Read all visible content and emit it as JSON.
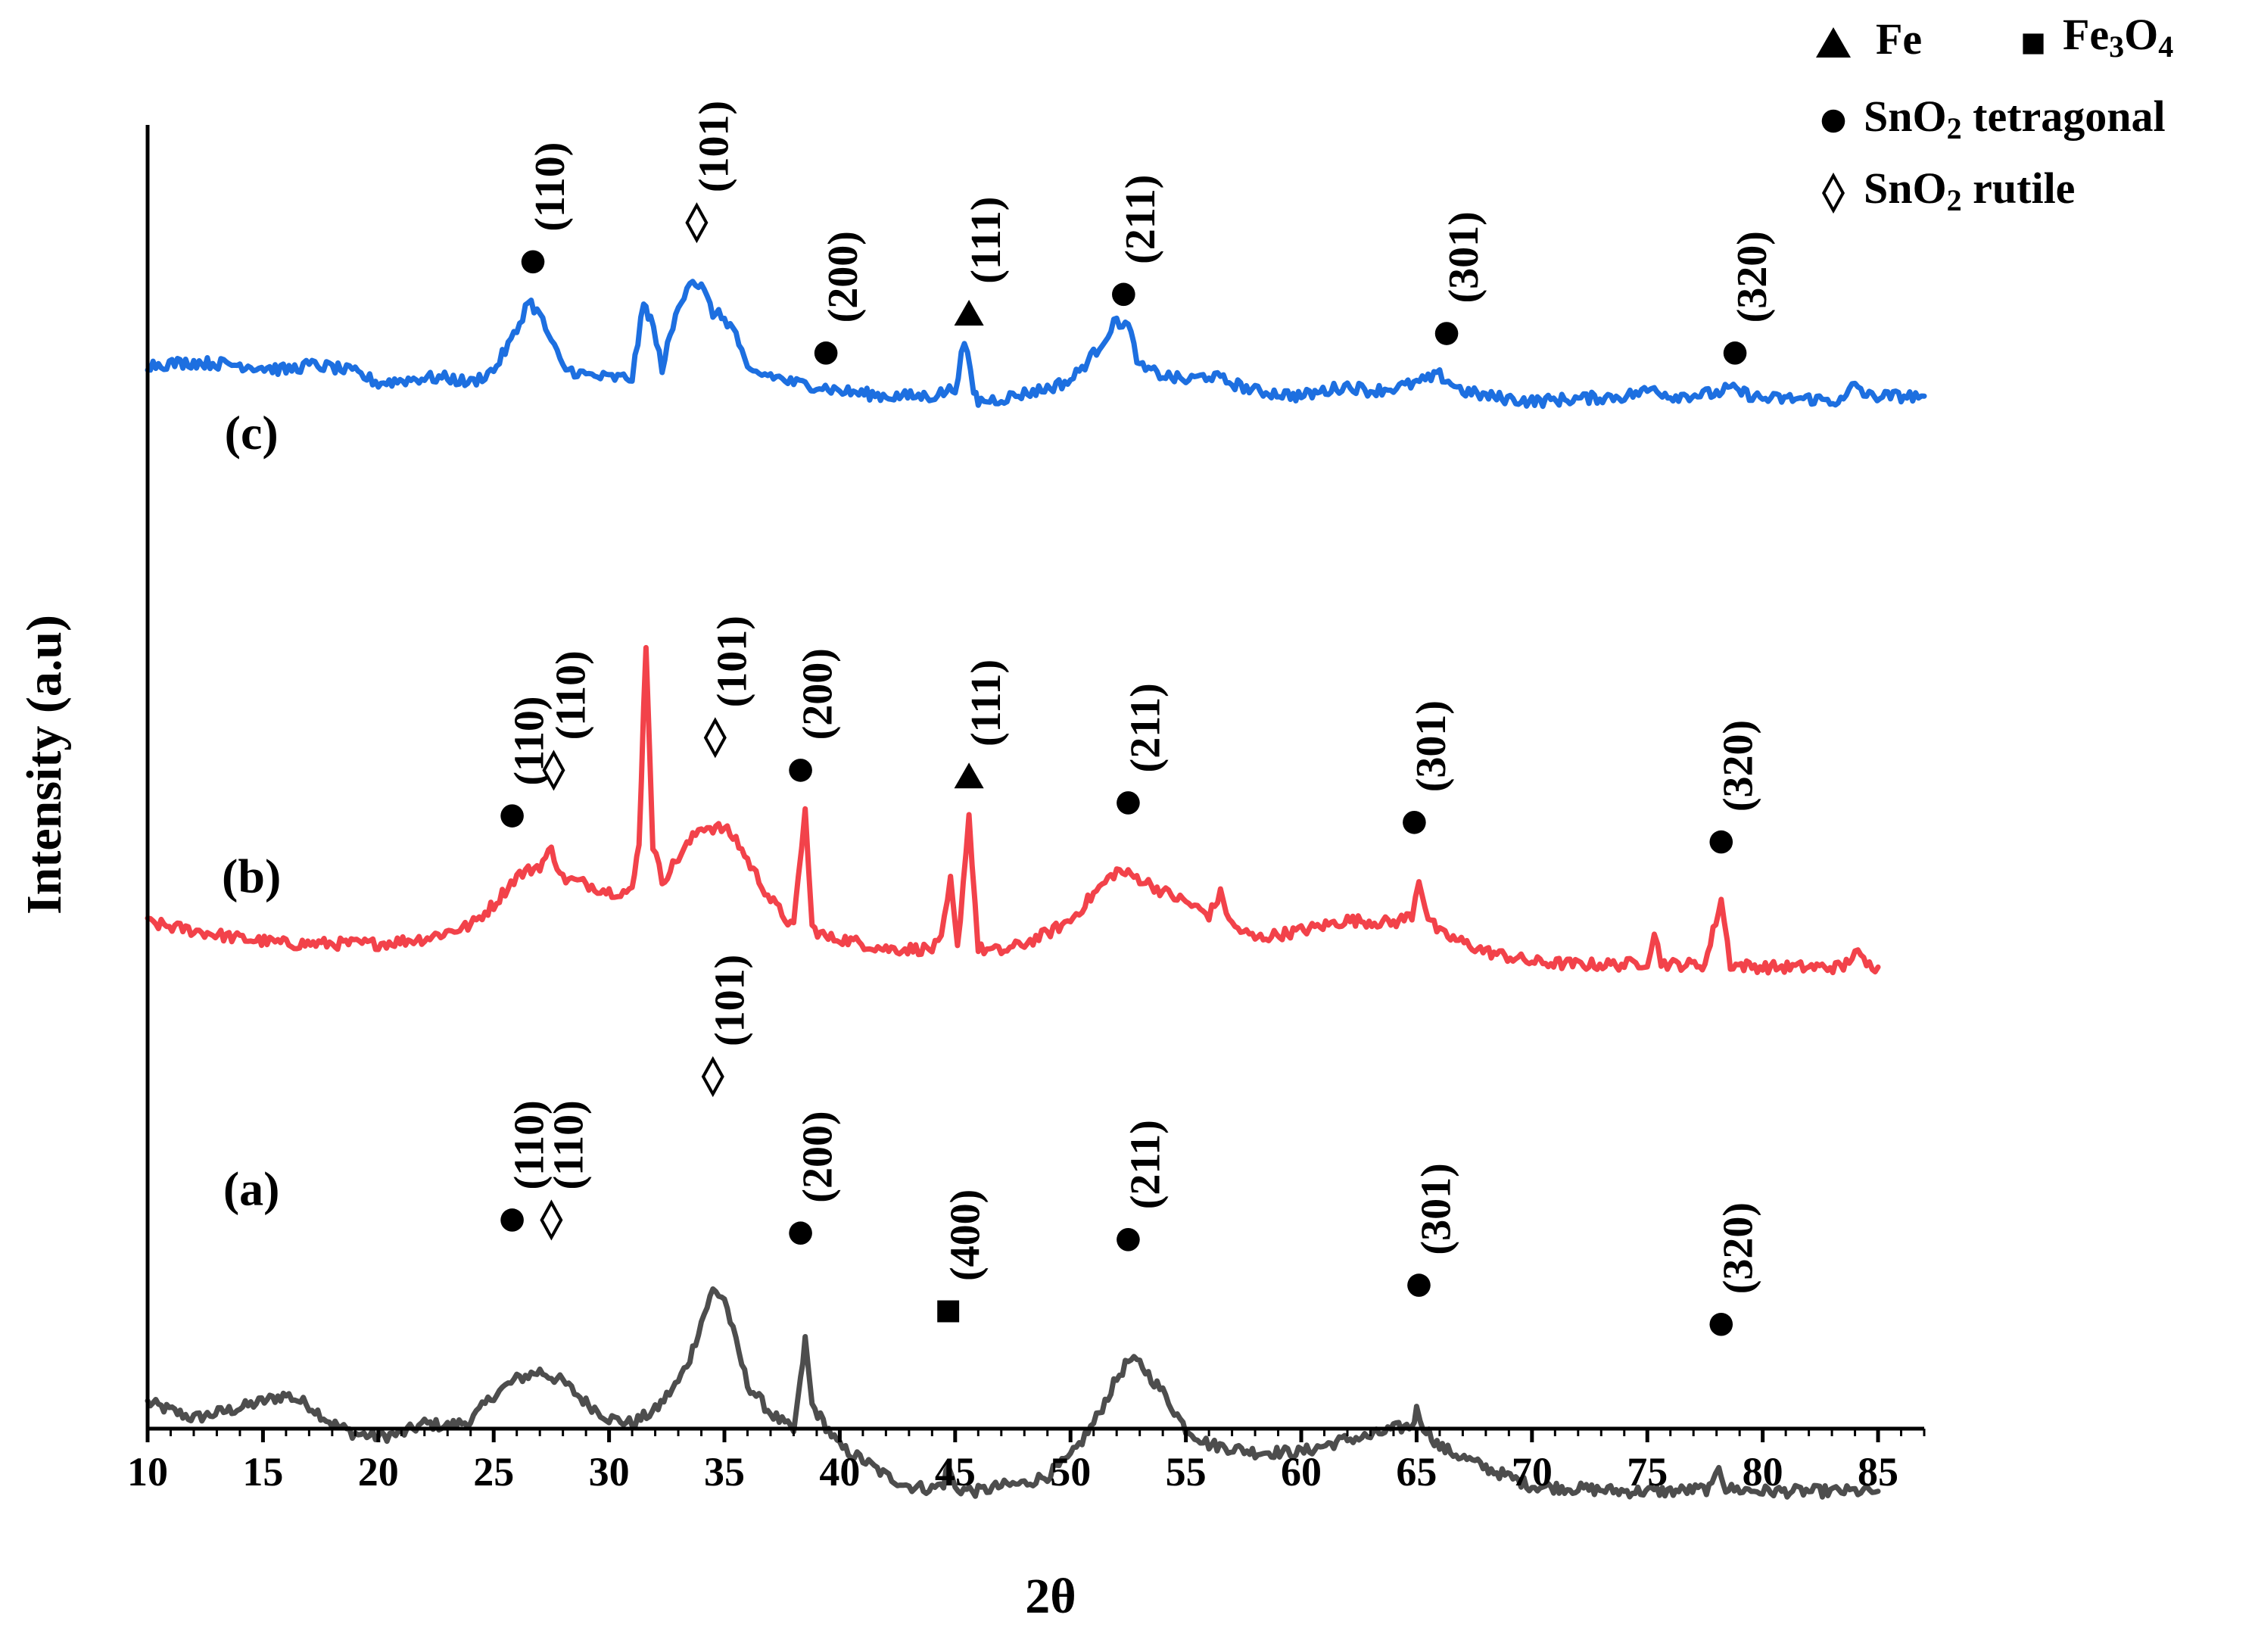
{
  "chart_data": {
    "type": "line",
    "title": "",
    "xlabel": "2θ",
    "ylabel": "Intensity (a.u)",
    "xlim": [
      10,
      87
    ],
    "xticks": [
      10,
      15,
      20,
      25,
      30,
      35,
      40,
      45,
      50,
      55,
      60,
      65,
      70,
      75,
      80,
      85
    ],
    "ylim": [
      0,
      100
    ],
    "grid": false,
    "colors": {
      "a": "#4d4d4d",
      "b": "#f2424a",
      "c": "#1d6fe0",
      "axis": "#000000"
    },
    "legend": {
      "position": "top-right",
      "items": [
        {
          "symbol": "triangle",
          "name": "Fe"
        },
        {
          "symbol": "square",
          "name": "Fe",
          "sub": "3",
          "name2": "O",
          "sub2": "4"
        },
        {
          "symbol": "circle",
          "name": "SnO",
          "sub": "2",
          "rest": " tetragonal"
        },
        {
          "symbol": "diamond",
          "name": "SnO",
          "sub": "2",
          "rest": " rutile"
        }
      ]
    },
    "series": [
      {
        "id": "a",
        "name": "(a)",
        "label_x": 14.5,
        "label_y": 18,
        "x": [
          10,
          12,
          14,
          16,
          17,
          18,
          19,
          20,
          21,
          22,
          23,
          24,
          25,
          26,
          27,
          27.5,
          28,
          29,
          30,
          31,
          32,
          33,
          33.5,
          34,
          34.5,
          35,
          35.5,
          36,
          37,
          38,
          38.3,
          38.5,
          38.8,
          40,
          41,
          42,
          43,
          44,
          44.5,
          44.7,
          45,
          46,
          47,
          48,
          49,
          50,
          51,
          52,
          52.5,
          53,
          54,
          55,
          56,
          58,
          60,
          62,
          63,
          64,
          64.8,
          65,
          65.3,
          66,
          68,
          70,
          72,
          74,
          76,
          77.8,
          78.1,
          78.4,
          80,
          82,
          84,
          85
        ],
        "y": [
          2.0,
          0.8,
          1.6,
          2.6,
          1.8,
          0.4,
          -0.4,
          -0.6,
          -0.4,
          0.4,
          0.2,
          0.6,
          2.6,
          3.8,
          4.4,
          4.0,
          3.6,
          2.0,
          0.8,
          0.4,
          1.4,
          3.6,
          5.4,
          8.2,
          10.6,
          10.0,
          6.6,
          3.4,
          1.2,
          -0.2,
          3.6,
          6.8,
          1.8,
          -1.4,
          -2.4,
          -3.6,
          -4.4,
          -4.6,
          -4.2,
          -2.8,
          -4.6,
          -4.8,
          -4.4,
          -4.2,
          -3.6,
          -2.2,
          0.4,
          3.8,
          5.2,
          5.0,
          2.8,
          0.0,
          -1.2,
          -1.8,
          -1.8,
          -0.8,
          -0.6,
          0.0,
          0.2,
          1.4,
          0.2,
          -1.4,
          -3.0,
          -4.4,
          -4.6,
          -4.8,
          -4.8,
          -4.6,
          -2.8,
          -4.6,
          -4.8,
          -4.8,
          -4.8,
          -4.8
        ]
      },
      {
        "id": "b",
        "name": "(b)",
        "label_x": 14.5,
        "label_y": 42,
        "x": [
          10,
          12,
          14,
          16,
          18,
          20,
          22,
          24,
          25,
          26,
          27,
          27.5,
          28,
          29,
          30,
          31,
          31.3,
          31.6,
          31.9,
          32.3,
          33,
          34,
          35,
          35.5,
          36,
          37,
          38,
          38.2,
          38.5,
          38.8,
          39.5,
          40,
          42,
          44,
          44.4,
          44.8,
          45.1,
          45.6,
          46,
          47,
          48,
          49,
          50,
          51,
          52,
          53,
          54,
          55,
          56,
          56.5,
          57,
          58,
          60,
          62,
          64,
          64.8,
          65.1,
          65.5,
          66,
          68,
          70,
          72,
          74,
          75,
          75.3,
          75.6,
          76,
          77.5,
          78.2,
          78.6,
          80,
          82,
          83.5,
          84,
          84.5,
          85
        ],
        "y": [
          38.8,
          38.2,
          37.6,
          37.2,
          37.2,
          37.2,
          37.6,
          38.6,
          40.2,
          42.4,
          43.2,
          44.4,
          42.2,
          41.8,
          41.2,
          41.2,
          45.0,
          60.2,
          44.8,
          42.0,
          43.8,
          46.2,
          46.0,
          45.2,
          43.6,
          40.6,
          38.4,
          42.2,
          47.4,
          38.4,
          37.6,
          37.6,
          36.8,
          36.8,
          37.4,
          42.0,
          36.8,
          47.0,
          36.8,
          36.6,
          37.2,
          38.0,
          39.0,
          41.0,
          42.8,
          42.2,
          41.2,
          40.4,
          39.4,
          41.0,
          38.6,
          37.6,
          38.2,
          39.0,
          38.8,
          39.4,
          42.2,
          39.2,
          38.0,
          36.6,
          35.8,
          35.6,
          35.6,
          35.8,
          38.0,
          35.8,
          35.6,
          35.6,
          40.6,
          35.6,
          35.4,
          35.4,
          35.4,
          36.6,
          35.6,
          35.4
        ]
      },
      {
        "id": "c",
        "name": "(c)",
        "label_x": 14.5,
        "label_y": 76,
        "x": [
          10,
          12,
          14,
          16,
          17,
          18,
          19,
          19.5,
          20,
          22,
          23,
          24,
          25,
          26,
          26.5,
          27,
          28,
          29,
          30,
          31,
          31.5,
          31.8,
          32.3,
          33,
          33.5,
          34,
          34.5,
          35,
          35.5,
          36,
          37,
          38,
          39,
          40,
          42,
          44,
          45,
          45.4,
          45.8,
          46,
          47,
          48,
          49,
          50,
          51,
          52,
          52.5,
          53,
          54,
          55,
          56,
          57,
          58,
          60,
          62,
          63,
          64,
          65,
          66,
          67,
          68,
          70,
          72,
          74,
          75,
          75.3,
          76,
          78,
          78.5,
          80,
          82,
          83.5,
          84,
          84.5,
          86,
          87
        ],
        "y": [
          81.6,
          81.8,
          81.6,
          81.2,
          81.6,
          81.4,
          81.0,
          80.6,
          80.2,
          80.6,
          80.6,
          80.2,
          81.2,
          84.2,
          86.6,
          85.4,
          81.4,
          80.8,
          80.6,
          80.6,
          86.2,
          85.2,
          81.4,
          86.0,
          88.2,
          87.6,
          85.6,
          85.2,
          84.0,
          81.0,
          80.8,
          80.2,
          80.0,
          79.6,
          79.2,
          79.2,
          79.8,
          83.4,
          79.6,
          78.8,
          79.0,
          79.4,
          79.8,
          80.4,
          82.4,
          85.0,
          84.6,
          81.4,
          80.8,
          80.4,
          80.8,
          80.2,
          79.6,
          79.2,
          80.0,
          79.6,
          79.8,
          80.2,
          80.8,
          79.6,
          79.2,
          78.8,
          79.0,
          79.2,
          79.6,
          79.8,
          79.2,
          79.4,
          79.8,
          79.0,
          79.0,
          78.8,
          80.2,
          79.2,
          79.2,
          79.2
        ]
      }
    ],
    "annotations": [
      {
        "series": "a",
        "symbol": "circle",
        "x": 25.8,
        "y": 16.0,
        "hkl": "(110)"
      },
      {
        "series": "a",
        "symbol": "diamond",
        "x": 27.5,
        "y": 16.0,
        "hkl": "(110)"
      },
      {
        "series": "a",
        "symbol": "diamond",
        "x": 34.5,
        "y": 27.0,
        "hkl": "(101)"
      },
      {
        "series": "a",
        "symbol": "circle",
        "x": 38.3,
        "y": 15.0,
        "hkl": "(200)"
      },
      {
        "series": "a",
        "symbol": "square",
        "x": 44.7,
        "y": 9.0,
        "hkl": "(400)"
      },
      {
        "series": "a",
        "symbol": "circle",
        "x": 52.5,
        "y": 14.5,
        "hkl": "(211)"
      },
      {
        "series": "a",
        "symbol": "circle",
        "x": 65.1,
        "y": 11.0,
        "hkl": "(301)"
      },
      {
        "series": "a",
        "symbol": "circle",
        "x": 78.2,
        "y": 8.0,
        "hkl": "(320)"
      },
      {
        "series": "b",
        "symbol": "circle",
        "x": 25.8,
        "y": 47.0,
        "hkl": "(110)"
      },
      {
        "series": "b",
        "symbol": "diamond",
        "x": 27.6,
        "y": 50.5,
        "hkl": "(110)"
      },
      {
        "series": "b",
        "symbol": "diamond",
        "x": 34.6,
        "y": 53.0,
        "hkl": "(101)"
      },
      {
        "series": "b",
        "symbol": "circle",
        "x": 38.3,
        "y": 50.5,
        "hkl": "(200)"
      },
      {
        "series": "b",
        "symbol": "triangle",
        "x": 45.6,
        "y": 50.0,
        "hkl": "(111)"
      },
      {
        "series": "b",
        "symbol": "circle",
        "x": 52.5,
        "y": 48.0,
        "hkl": "(211)"
      },
      {
        "series": "b",
        "symbol": "circle",
        "x": 64.9,
        "y": 46.5,
        "hkl": "(301)"
      },
      {
        "series": "b",
        "symbol": "circle",
        "x": 78.2,
        "y": 45.0,
        "hkl": "(320)"
      },
      {
        "series": "c",
        "symbol": "circle",
        "x": 26.7,
        "y": 89.5,
        "hkl": "(110)"
      },
      {
        "series": "c",
        "symbol": "diamond",
        "x": 33.8,
        "y": 92.5,
        "hkl": "(101)"
      },
      {
        "series": "c",
        "symbol": "circle",
        "x": 39.4,
        "y": 82.5,
        "hkl": "(200)"
      },
      {
        "series": "c",
        "symbol": "triangle",
        "x": 45.6,
        "y": 85.5,
        "hkl": "(111)"
      },
      {
        "series": "c",
        "symbol": "circle",
        "x": 52.3,
        "y": 87.0,
        "hkl": "(211)"
      },
      {
        "series": "c",
        "symbol": "circle",
        "x": 66.3,
        "y": 84.0,
        "hkl": "(301)"
      },
      {
        "series": "c",
        "symbol": "circle",
        "x": 78.8,
        "y": 82.5,
        "hkl": "(320)"
      }
    ]
  }
}
